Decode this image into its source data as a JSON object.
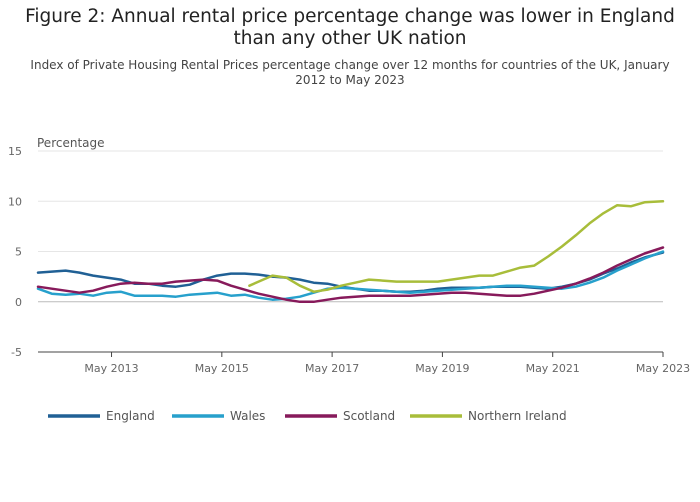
{
  "header": {
    "title": "Figure 2: Annual rental price percentage change was lower in England than any other UK nation",
    "subtitle": "Index of Private Housing Rental Prices percentage change over 12 months for countries of the UK, January 2012 to May 2023"
  },
  "chart_data": {
    "type": "line",
    "title": "Figure 2: Annual rental price percentage change was lower in England than any other UK nation",
    "subtitle": "Index of Private Housing Rental Prices percentage change over 12 months for countries of the UK, January 2012 to May 2023",
    "ylabel": "Percentage",
    "xlabel": "",
    "ylim": [
      -5,
      15
    ],
    "yticks": [
      15,
      10,
      5,
      0,
      -5
    ],
    "xlim": [
      "2012-01",
      "2023-05"
    ],
    "xticks": [
      "May 2013",
      "May 2015",
      "May 2017",
      "May 2019",
      "May 2021",
      "May 2023"
    ],
    "grid": "horizontal",
    "legend_position": "bottom",
    "series": [
      {
        "name": "England",
        "color": "#206095",
        "x": [
          "2012-01",
          "2012-04",
          "2012-07",
          "2012-10",
          "2013-01",
          "2013-04",
          "2013-07",
          "2013-10",
          "2014-01",
          "2014-04",
          "2014-07",
          "2014-10",
          "2015-01",
          "2015-04",
          "2015-07",
          "2015-10",
          "2016-01",
          "2016-04",
          "2016-07",
          "2016-10",
          "2017-01",
          "2017-04",
          "2017-07",
          "2017-10",
          "2018-01",
          "2018-04",
          "2018-07",
          "2018-10",
          "2019-01",
          "2019-04",
          "2019-07",
          "2019-10",
          "2020-01",
          "2020-04",
          "2020-07",
          "2020-10",
          "2021-01",
          "2021-04",
          "2021-07",
          "2021-10",
          "2022-01",
          "2022-04",
          "2022-07",
          "2022-10",
          "2023-01",
          "2023-05"
        ],
        "values": [
          2.9,
          3.0,
          3.1,
          2.9,
          2.6,
          2.4,
          2.2,
          1.8,
          1.8,
          1.6,
          1.5,
          1.7,
          2.2,
          2.6,
          2.8,
          2.8,
          2.7,
          2.5,
          2.4,
          2.2,
          1.9,
          1.8,
          1.5,
          1.3,
          1.1,
          1.1,
          1.0,
          1.0,
          1.1,
          1.3,
          1.4,
          1.4,
          1.4,
          1.5,
          1.5,
          1.5,
          1.4,
          1.3,
          1.5,
          1.8,
          2.2,
          2.8,
          3.3,
          3.9,
          4.4,
          4.9
        ]
      },
      {
        "name": "Wales",
        "color": "#27a0cc",
        "x": [
          "2012-01",
          "2012-04",
          "2012-07",
          "2012-10",
          "2013-01",
          "2013-04",
          "2013-07",
          "2013-10",
          "2014-01",
          "2014-04",
          "2014-07",
          "2014-10",
          "2015-01",
          "2015-04",
          "2015-07",
          "2015-10",
          "2016-01",
          "2016-04",
          "2016-07",
          "2016-10",
          "2017-01",
          "2017-04",
          "2017-07",
          "2017-10",
          "2018-01",
          "2018-04",
          "2018-07",
          "2018-10",
          "2019-01",
          "2019-04",
          "2019-07",
          "2019-10",
          "2020-01",
          "2020-04",
          "2020-07",
          "2020-10",
          "2021-01",
          "2021-04",
          "2021-07",
          "2021-10",
          "2022-01",
          "2022-04",
          "2022-07",
          "2022-10",
          "2023-01",
          "2023-05"
        ],
        "values": [
          1.3,
          0.8,
          0.7,
          0.8,
          0.6,
          0.9,
          1.0,
          0.6,
          0.6,
          0.6,
          0.5,
          0.7,
          0.8,
          0.9,
          0.6,
          0.7,
          0.4,
          0.2,
          0.3,
          0.5,
          0.9,
          1.3,
          1.4,
          1.3,
          1.2,
          1.1,
          1.0,
          0.9,
          1.0,
          1.1,
          1.2,
          1.3,
          1.4,
          1.5,
          1.6,
          1.6,
          1.5,
          1.4,
          1.3,
          1.5,
          1.9,
          2.4,
          3.1,
          3.7,
          4.3,
          5.0
        ]
      },
      {
        "name": "Scotland",
        "color": "#871a5b",
        "x": [
          "2012-01",
          "2012-04",
          "2012-07",
          "2012-10",
          "2013-01",
          "2013-04",
          "2013-07",
          "2013-10",
          "2014-01",
          "2014-04",
          "2014-07",
          "2014-10",
          "2015-01",
          "2015-04",
          "2015-07",
          "2015-10",
          "2016-01",
          "2016-04",
          "2016-07",
          "2016-10",
          "2017-01",
          "2017-04",
          "2017-07",
          "2017-10",
          "2018-01",
          "2018-04",
          "2018-07",
          "2018-10",
          "2019-01",
          "2019-04",
          "2019-07",
          "2019-10",
          "2020-01",
          "2020-04",
          "2020-07",
          "2020-10",
          "2021-01",
          "2021-04",
          "2021-07",
          "2021-10",
          "2022-01",
          "2022-04",
          "2022-07",
          "2022-10",
          "2023-01",
          "2023-05"
        ],
        "values": [
          1.5,
          1.3,
          1.1,
          0.9,
          1.1,
          1.5,
          1.8,
          1.9,
          1.8,
          1.8,
          2.0,
          2.1,
          2.2,
          2.1,
          1.6,
          1.2,
          0.8,
          0.5,
          0.2,
          0.0,
          0.0,
          0.2,
          0.4,
          0.5,
          0.6,
          0.6,
          0.6,
          0.6,
          0.7,
          0.8,
          0.9,
          0.9,
          0.8,
          0.7,
          0.6,
          0.6,
          0.8,
          1.1,
          1.4,
          1.8,
          2.3,
          2.9,
          3.6,
          4.2,
          4.8,
          5.4
        ]
      },
      {
        "name": "Northern Ireland",
        "color": "#a8bd3a",
        "x": [
          "2015-11",
          "2016-01",
          "2016-04",
          "2016-07",
          "2016-10",
          "2017-01",
          "2017-04",
          "2017-07",
          "2017-10",
          "2018-01",
          "2018-04",
          "2018-07",
          "2018-10",
          "2019-01",
          "2019-04",
          "2019-07",
          "2019-10",
          "2020-01",
          "2020-04",
          "2020-07",
          "2020-10",
          "2021-01",
          "2021-04",
          "2021-07",
          "2021-10",
          "2022-01",
          "2022-04",
          "2022-07",
          "2022-10",
          "2023-01",
          "2023-05"
        ],
        "values": [
          1.6,
          2.0,
          2.6,
          2.4,
          1.6,
          1.0,
          1.2,
          1.6,
          1.9,
          2.2,
          2.1,
          2.0,
          2.0,
          2.0,
          2.0,
          2.2,
          2.4,
          2.6,
          2.6,
          3.0,
          3.4,
          3.6,
          4.5,
          5.5,
          6.6,
          7.8,
          8.8,
          9.6,
          9.5,
          9.9,
          10.0
        ]
      }
    ]
  }
}
